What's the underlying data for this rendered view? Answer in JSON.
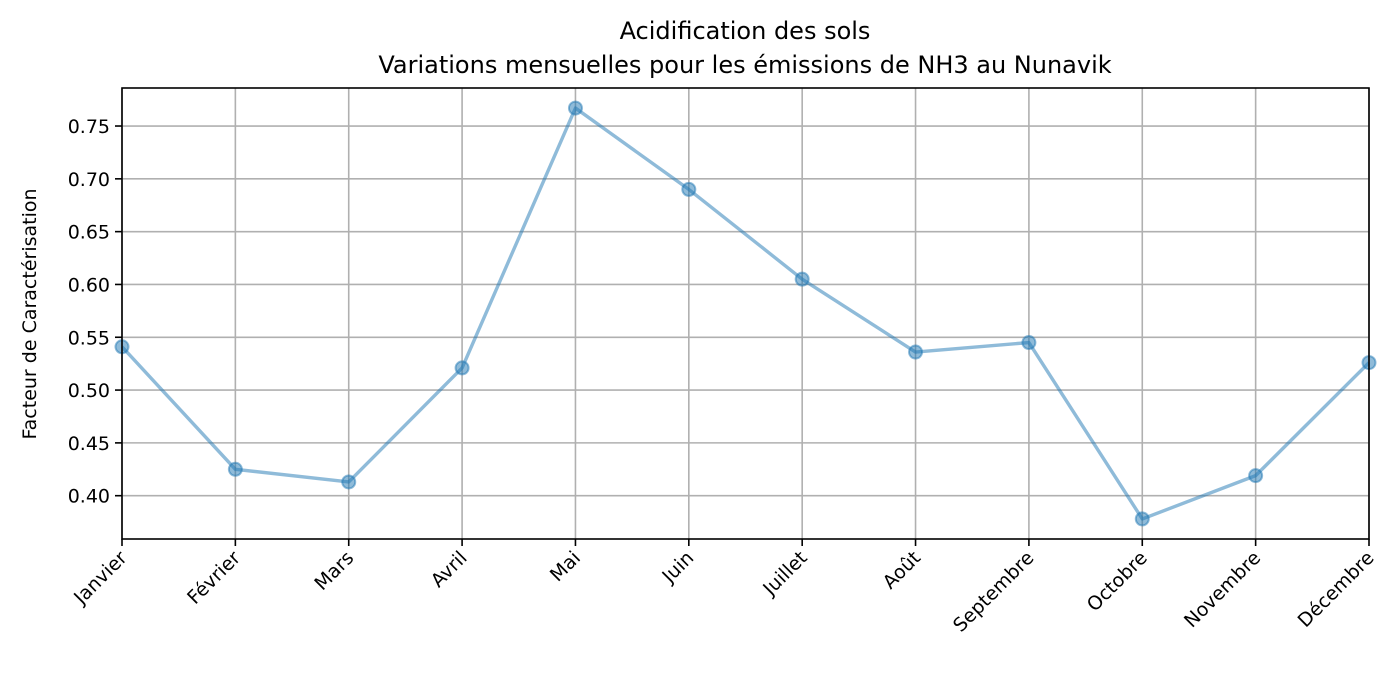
{
  "chart_data": {
    "type": "line",
    "title": "Acidification des sols",
    "subtitle": "Variations mensuelles pour les émissions de NH3 au Nunavik",
    "xlabel": "",
    "ylabel": "Facteur de Caractérisation",
    "categories": [
      "Janvier",
      "Février",
      "Mars",
      "Avril",
      "Mai",
      "Juin",
      "Juillet",
      "Août",
      "Septembre",
      "Octobre",
      "Novembre",
      "Décembre"
    ],
    "series": [
      {
        "values": [
          0.541,
          0.425,
          0.413,
          0.521,
          0.767,
          0.69,
          0.605,
          0.536,
          0.545,
          0.378,
          0.419,
          0.526
        ],
        "color": "#1f77b4",
        "opacity": 0.5,
        "marker": "circle"
      }
    ],
    "ylim": [
      0.359,
      0.786
    ],
    "yticks": [
      0.4,
      0.45,
      0.5,
      0.55,
      0.6,
      0.65,
      0.7,
      0.75
    ],
    "ytick_labels": [
      "0.40",
      "0.45",
      "0.50",
      "0.55",
      "0.60",
      "0.65",
      "0.70",
      "0.75"
    ],
    "grid": true,
    "legend": "none",
    "xtick_rotation": "45°"
  }
}
